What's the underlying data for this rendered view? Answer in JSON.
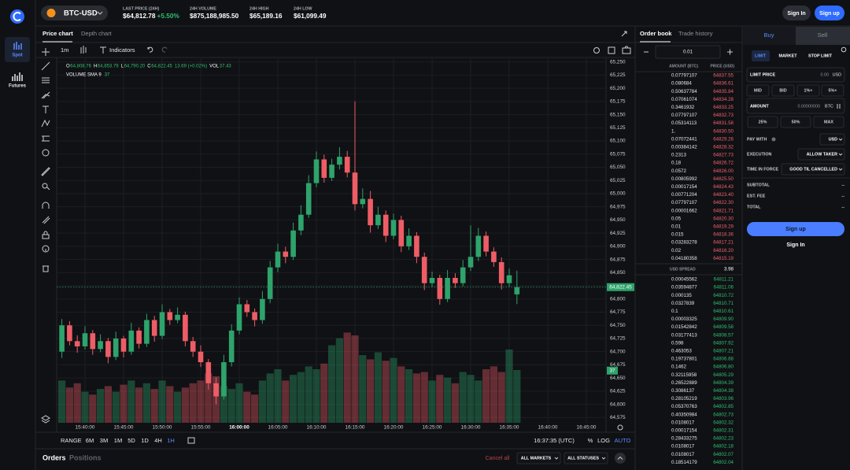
{
  "sidebar": {
    "items": [
      "Spot",
      "Futures"
    ]
  },
  "header": {
    "pair": "BTC-USD",
    "stats": [
      {
        "label": "LAST PRICE (24H)",
        "value": "$64,812.78",
        "change": "+5.50%"
      },
      {
        "label": "24H VOLUME",
        "value": "$875,188,985.50"
      },
      {
        "label": "24H HIGH",
        "value": "$65,189.16"
      },
      {
        "label": "24H LOW",
        "value": "$61,099.49"
      }
    ],
    "sign_in": "Sign In",
    "sign_up": "Sign up"
  },
  "chart_panel": {
    "tabs": [
      "Price chart",
      "Depth chart"
    ],
    "interval": "1m",
    "indicators": "Indicators",
    "range_label": "RANGE",
    "ranges": [
      "6M",
      "3M",
      "1M",
      "5D",
      "1D",
      "4H",
      "1H"
    ],
    "clock": "16:37:35 (UTC)",
    "scale_options": [
      "%",
      "LOG",
      "AUTO"
    ]
  },
  "chart_data": {
    "type": "candlestick",
    "legend": [
      {
        "key": "O",
        "value": "64,808.76"
      },
      {
        "key": "H",
        "value": "64,853.79"
      },
      {
        "key": "L",
        "value": "64,790.20"
      },
      {
        "key": "C",
        "value": "64,822.45"
      }
    ],
    "change": "13.69 (+0.02%)",
    "volume_legend": {
      "key": "VOL",
      "value": "37.43"
    },
    "volume_sma": {
      "label": "VOLUME SMA 9",
      "value": 37
    },
    "x": [
      "15:37:00",
      "15:38:00",
      "15:39:00",
      "15:40:00",
      "15:41:00",
      "15:42:00",
      "15:43:00",
      "15:44:00",
      "15:45:00",
      "15:46:00",
      "15:47:00",
      "15:48:00",
      "15:49:00",
      "15:50:00",
      "15:51:00",
      "15:52:00",
      "15:53:00",
      "15:54:00",
      "15:55:00",
      "15:56:00",
      "15:57:00",
      "15:58:00",
      "15:59:00",
      "16:00:00",
      "16:01:00",
      "16:02:00",
      "16:03:00",
      "16:04:00",
      "16:05:00",
      "16:06:00",
      "16:07:00",
      "16:08:00",
      "16:09:00",
      "16:10:00",
      "16:11:00",
      "16:12:00",
      "16:13:00",
      "16:14:00",
      "16:15:00",
      "16:16:00",
      "16:17:00",
      "16:18:00",
      "16:19:00",
      "16:20:00",
      "16:21:00",
      "16:22:00",
      "16:23:00",
      "16:24:00",
      "16:25:00",
      "16:26:00",
      "16:27:00",
      "16:28:00",
      "16:29:00",
      "16:30:00",
      "16:31:00",
      "16:32:00",
      "16:33:00",
      "16:34:00",
      "16:35:00",
      "16:36:00"
    ],
    "open": [
      64700,
      64750,
      64720,
      64710,
      64735,
      64705,
      64720,
      64690,
      64725,
      64700,
      64740,
      64715,
      64760,
      64730,
      64775,
      64760,
      64770,
      64720,
      64700,
      64680,
      64640,
      64615,
      64680,
      64740,
      64790,
      64775,
      64760,
      64800,
      64860,
      64890,
      64880,
      64930,
      64960,
      65020,
      65065,
      65030,
      65055,
      65070,
      65040,
      64980,
      64990,
      64940,
      64960,
      64920,
      64950,
      64900,
      64920,
      64880,
      64830,
      64840,
      64800,
      64840,
      64830,
      64860,
      64880,
      64920,
      64890,
      64870,
      64830,
      64808.76
    ],
    "high": [
      64762,
      64758,
      64731,
      64748,
      64741,
      64733,
      64726,
      64738,
      64730,
      64755,
      64746,
      64772,
      64768,
      64790,
      64781,
      64784,
      64776,
      64728,
      64712,
      64686,
      64651,
      64694,
      64752,
      64803,
      64798,
      64782,
      64815,
      64872,
      64905,
      64899,
      64945,
      64978,
      65035,
      65080,
      65074,
      65066,
      65088,
      65081,
      65175,
      65010,
      65005,
      64975,
      64968,
      64962,
      64958,
      64934,
      64927,
      64888,
      64852,
      64846,
      64855,
      64849,
      64874,
      64940,
      64935,
      64928,
      64898,
      64879,
      64858,
      64853.79
    ],
    "low": [
      64688,
      64712,
      64698,
      64704,
      64694,
      64699,
      64678,
      64684,
      64689,
      64694,
      64706,
      64709,
      64719,
      64724,
      64751,
      64754,
      64710,
      64690,
      64671,
      64628,
      64600,
      64609,
      64672,
      64733,
      64766,
      64748,
      64753,
      64792,
      64851,
      64868,
      64874,
      64921,
      64954,
      65012,
      65021,
      65024,
      65046,
      65031,
      64968,
      64972,
      64926,
      64933,
      64908,
      64913,
      64889,
      64893,
      64868,
      64817,
      64822,
      64789,
      64794,
      64821,
      64824,
      64853,
      64872,
      64881,
      64861,
      64818,
      64823,
      64790.2
    ],
    "close": [
      64750,
      64720,
      64710,
      64735,
      64705,
      64720,
      64690,
      64725,
      64700,
      64740,
      64715,
      64760,
      64730,
      64775,
      64760,
      64770,
      64720,
      64700,
      64680,
      64640,
      64615,
      64680,
      64740,
      64790,
      64775,
      64760,
      64800,
      64860,
      64890,
      64880,
      64930,
      64960,
      65020,
      65065,
      65030,
      65055,
      65070,
      65040,
      64980,
      64990,
      64940,
      64960,
      64920,
      64950,
      64900,
      64920,
      64880,
      64830,
      64840,
      64800,
      64840,
      64830,
      64860,
      64880,
      64920,
      64890,
      64870,
      64830,
      64845,
      64822.45
    ],
    "volume": [
      30,
      25,
      28,
      22,
      20,
      24,
      26,
      22,
      27,
      30,
      25,
      28,
      24,
      30,
      26,
      22,
      25,
      28,
      30,
      35,
      33,
      26,
      24,
      28,
      22,
      20,
      30,
      35,
      38,
      30,
      34,
      36,
      40,
      38,
      42,
      55,
      60,
      64,
      62,
      48,
      45,
      50,
      44,
      46,
      40,
      38,
      35,
      36,
      30,
      34,
      32,
      28,
      36,
      34,
      30,
      38,
      40,
      36,
      52,
      37.43
    ],
    "up_color": "#2ea36b",
    "down_color": "#ee5d66",
    "ylim": [
      64565,
      65260
    ],
    "yticks": [
      {
        "value": 65250,
        "label": "65,250"
      },
      {
        "value": 65225,
        "label": "65,225"
      },
      {
        "value": 65200,
        "label": "65,200"
      },
      {
        "value": 65175,
        "label": "65,175"
      },
      {
        "value": 65150,
        "label": "65,150"
      },
      {
        "value": 65125,
        "label": "65,125"
      },
      {
        "value": 65100,
        "label": "65,100"
      },
      {
        "value": 65075,
        "label": "65,075"
      },
      {
        "value": 65050,
        "label": "65,050"
      },
      {
        "value": 65025,
        "label": "65,025"
      },
      {
        "value": 65000,
        "label": "65,000"
      },
      {
        "value": 64975,
        "label": "64,975"
      },
      {
        "value": 64950,
        "label": "64,950"
      },
      {
        "value": 64925,
        "label": "64,925"
      },
      {
        "value": 64900,
        "label": "64,900"
      },
      {
        "value": 64875,
        "label": "64,875"
      },
      {
        "value": 64850,
        "label": "64,850"
      },
      {
        "value": 64825,
        "label": "64,825"
      },
      {
        "value": 64800,
        "label": "64,800"
      },
      {
        "value": 64775,
        "label": "64,775"
      },
      {
        "value": 64750,
        "label": "64,750"
      },
      {
        "value": 64725,
        "label": "64,725"
      },
      {
        "value": 64700,
        "label": "64,700"
      },
      {
        "value": 64675,
        "label": "64,675"
      },
      {
        "value": 64650,
        "label": "64,650"
      },
      {
        "value": 64625,
        "label": "64,625"
      },
      {
        "value": 64600,
        "label": "64,600"
      },
      {
        "value": 64575,
        "label": "64,575"
      }
    ],
    "xticks": [
      "15:40:00",
      "15:45:00",
      "15:50:00",
      "15:55:00",
      "16:00:00",
      "16:05:00",
      "16:10:00",
      "16:15:00",
      "16:20:00",
      "16:25:00",
      "16:30:00",
      "16:35:00",
      "16:40:00",
      "16:45:00"
    ],
    "last_price": {
      "value": 64822.45,
      "label": "64,822.45"
    },
    "grid": true
  },
  "order_book": {
    "tabs": [
      "Order book",
      "Trade history"
    ],
    "tick": "0.01",
    "headers": [
      "AMOUNT (BTC)",
      "PRICE (USD)"
    ],
    "asks": [
      [
        "0.07797107",
        "64837.55"
      ],
      [
        "0.080684",
        "64836.61"
      ],
      [
        "0.50637784",
        "64835.84"
      ],
      [
        "0.07061074",
        "64834.28"
      ],
      [
        "0.3461932",
        "64833.25"
      ],
      [
        "0.07797107",
        "64832.73"
      ],
      [
        "0.05314113",
        "64831.58"
      ],
      [
        "1.",
        "64830.50"
      ],
      [
        "0.07072441",
        "64829.26"
      ],
      [
        "0.00384142",
        "64828.32"
      ],
      [
        "0.2313",
        "64827.73"
      ],
      [
        "0.18",
        "64826.72"
      ],
      [
        "0.0572",
        "64826.00"
      ],
      [
        "0.00805992",
        "64825.50"
      ],
      [
        "0.00017154",
        "64824.43"
      ],
      [
        "0.00771204",
        "64823.40"
      ],
      [
        "0.07797107",
        "64822.30"
      ],
      [
        "0.00001662",
        "64821.71"
      ],
      [
        "0.05",
        "64820.30"
      ],
      [
        "0.01",
        "64819.29"
      ],
      [
        "0.015",
        "64818.36"
      ],
      [
        "0.03283278",
        "64817.21"
      ],
      [
        "0.02",
        "64816.20"
      ],
      [
        "0.04180358",
        "64815.19"
      ]
    ],
    "spread_label": "USD SPREAD",
    "spread": "3.98",
    "bids": [
      [
        "0.00045562",
        "64811.21"
      ],
      [
        "0.03594877",
        "64811.06"
      ],
      [
        "0.000135",
        "64810.72"
      ],
      [
        "0.0327839",
        "64810.71"
      ],
      [
        "0.1",
        "64810.61"
      ],
      [
        "0.00003325",
        "64809.90"
      ],
      [
        "0.01542842",
        "64809.58"
      ],
      [
        "0.03177413",
        "64808.57"
      ],
      [
        "0.598",
        "64807.92"
      ],
      [
        "0.463053",
        "64807.21"
      ],
      [
        "0.19737801",
        "64806.88"
      ],
      [
        "0.1462",
        "64806.80"
      ],
      [
        "0.32115958",
        "64805.29"
      ],
      [
        "0.26522889",
        "64804.39"
      ],
      [
        "0.3086137",
        "64804.38"
      ],
      [
        "0.28105219",
        "64803.96"
      ],
      [
        "0.05370763",
        "64802.85"
      ],
      [
        "0.40350984",
        "64802.73"
      ],
      [
        "0.0108017",
        "64802.32"
      ],
      [
        "0.00017154",
        "64802.31"
      ],
      [
        "0.28433275",
        "64802.23"
      ],
      [
        "0.0108017",
        "64802.18"
      ],
      [
        "0.0108017",
        "64802.07"
      ],
      [
        "0.18514179",
        "64802.04"
      ]
    ]
  },
  "order_form": {
    "tabs": [
      "Buy",
      "Sell"
    ],
    "types": [
      "LIMIT",
      "MARKET",
      "STOP LIMIT"
    ],
    "limit_price": {
      "label": "LIMIT PRICE",
      "placeholder": "0.00",
      "unit": "USD"
    },
    "price_presets": [
      "MID",
      "BID",
      "1%+",
      "5%+"
    ],
    "amount": {
      "label": "AMOUNT",
      "placeholder": "0.00000000",
      "unit": "BTC"
    },
    "amount_presets": [
      "25%",
      "50%",
      "MAX"
    ],
    "options": [
      {
        "label": "PAY WITH",
        "value": "USD"
      },
      {
        "label": "EXECUTION",
        "value": "ALLOW TAKER"
      },
      {
        "label": "TIME IN FORCE",
        "value": "GOOD TIL CANCELLED"
      }
    ],
    "totals": [
      {
        "label": "SUBTOTAL",
        "value": "--"
      },
      {
        "label": "EST. FEE",
        "value": "--"
      },
      {
        "label": "TOTAL",
        "value": "--"
      }
    ],
    "submit": "Sign up",
    "sign_in": "Sign In"
  },
  "orders_bar": {
    "tabs": [
      "Orders",
      "Positions"
    ],
    "cancel_all": "Cancel all",
    "filters": [
      "ALL MARKETS",
      "ALL STATUSES"
    ]
  }
}
